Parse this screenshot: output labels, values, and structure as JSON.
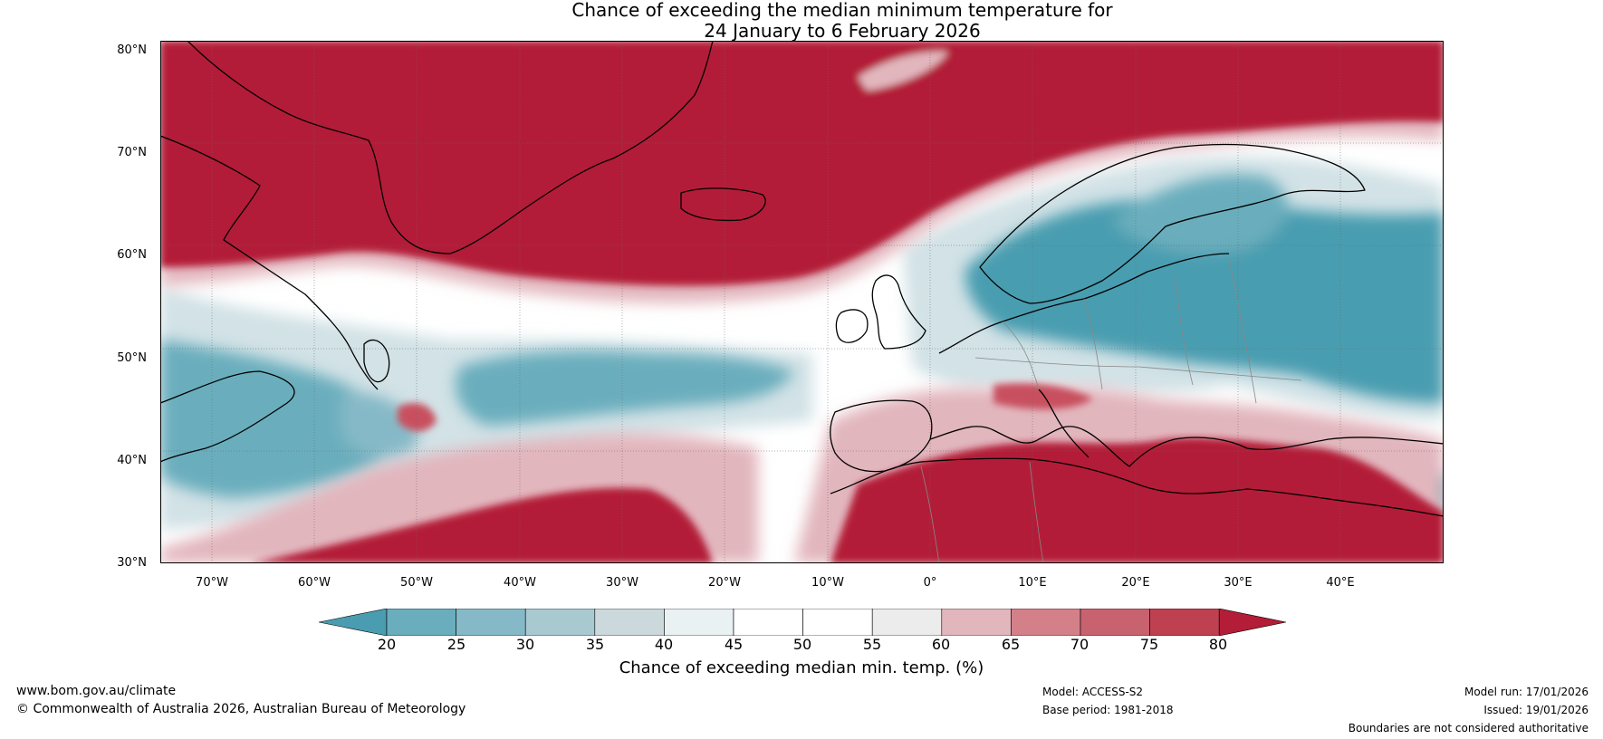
{
  "title": {
    "line1": "Chance of exceeding the median minimum temperature for",
    "line2": "24 January to 6 February 2026"
  },
  "map": {
    "lat_labels": [
      "80°N",
      "70°N",
      "60°N",
      "50°N",
      "40°N",
      "30°N"
    ],
    "lon_labels": [
      "70°W",
      "60°W",
      "50°W",
      "40°W",
      "30°W",
      "20°W",
      "10°W",
      "0°",
      "10°E",
      "20°E",
      "30°E",
      "40°E"
    ],
    "colors": {
      "strong_warm": "#b31d37",
      "warm": "#c8505f",
      "light_warm": "#e2b6bd",
      "neutral": "#ffffff",
      "light_cool": "#d2e2e6",
      "cool": "#6aaebd",
      "strong_cool": "#4a9db0",
      "coastline": "#000000",
      "border": "#888888"
    }
  },
  "colorbar": {
    "ticks": [
      "20",
      "25",
      "30",
      "35",
      "40",
      "45",
      "50",
      "55",
      "60",
      "65",
      "70",
      "75",
      "80"
    ],
    "colors": [
      "#4a9db0",
      "#6aaebd",
      "#86b9c7",
      "#a9c9d1",
      "#cbd9dd",
      "#e9f1f3",
      "#ffffff",
      "#ffffff",
      "#ececec",
      "#e2b6bd",
      "#d48089",
      "#c8626e",
      "#bf4050",
      "#b31d37"
    ],
    "label": "Chance of exceeding median min. temp. (%)"
  },
  "footer": {
    "website": "www.bom.gov.au/climate",
    "copyright": "© Commonwealth of Australia 2026, Australian Bureau of Meteorology",
    "model": "Model: ACCESS-S2",
    "base_period": "Base period: 1981-2018",
    "model_run": "Model run: 17/01/2026",
    "issued": "Issued: 19/01/2026",
    "disclaimer": "Boundaries are not considered authoritative"
  }
}
